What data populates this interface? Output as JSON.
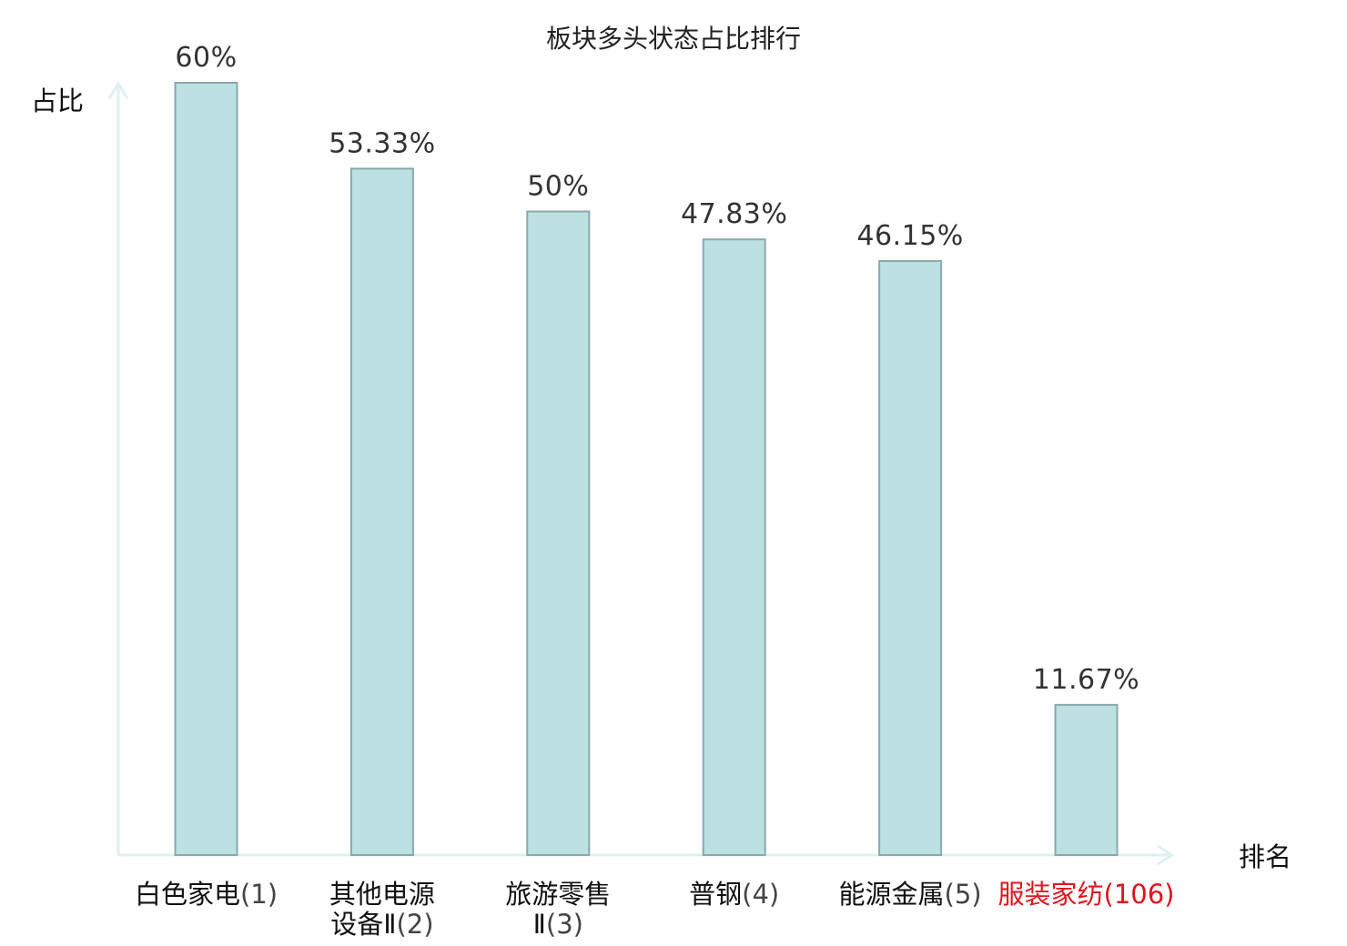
{
  "chart_data": {
    "type": "bar",
    "title": "板块多头状态占比排行",
    "xlabel": "排名",
    "ylabel": "占比",
    "ylim": [
      0,
      60
    ],
    "grid": false,
    "legend": "none",
    "categories": [
      {
        "lines": [
          "白色家电"
        ],
        "rank": "(1)",
        "highlight": false
      },
      {
        "lines": [
          "其他电源",
          "设备Ⅱ"
        ],
        "rank": "(2)",
        "highlight": false
      },
      {
        "lines": [
          "旅游零售",
          "Ⅱ"
        ],
        "rank": "(3)",
        "highlight": false
      },
      {
        "lines": [
          "普钢"
        ],
        "rank": "(4)",
        "highlight": false
      },
      {
        "lines": [
          "能源金属"
        ],
        "rank": "(5)",
        "highlight": false
      },
      {
        "lines": [
          "服装家纺"
        ],
        "rank": "(106)",
        "highlight": true
      }
    ],
    "values": [
      60,
      53.33,
      50,
      47.83,
      46.15,
      11.67
    ],
    "value_labels": [
      "60%",
      "53.33%",
      "50%",
      "47.83%",
      "46.15%",
      "11.67%"
    ],
    "colors": {
      "bar_fill": "#bde0e3",
      "bar_stroke": "#8aa8ab",
      "axis": "#dff1ee",
      "highlight_text": "#e0141e"
    }
  }
}
